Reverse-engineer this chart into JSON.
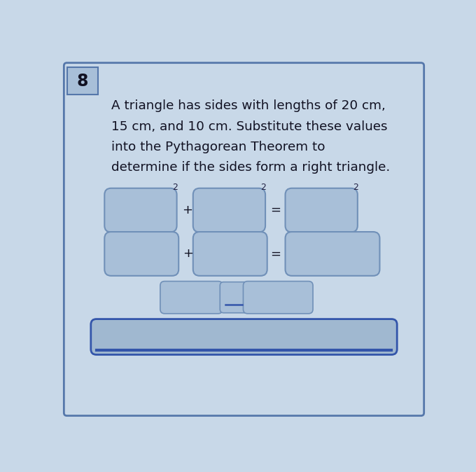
{
  "question_number": "8",
  "text_lines": [
    "A triangle has sides with lengths of 20 cm,",
    "15 cm, and 10 cm. Substitute these values",
    "into the Pythagorean Theorem to",
    "determine if the sides form a right triangle."
  ],
  "fig_bg": "#c8d8e8",
  "inner_bg": "#d0dde8",
  "box_face": "#a8bfd8",
  "box_edge": "#7090b8",
  "num_box_face": "#a8bfd8",
  "num_box_edge": "#5577aa",
  "text_color": "#111122",
  "op_color": "#111122",
  "sup_color": "#222244",
  "bar_face": "#a0b8d0",
  "bar_edge": "#3355aa",
  "outer_edge": "#5577aa",
  "outer_face": "#c8d8e8"
}
